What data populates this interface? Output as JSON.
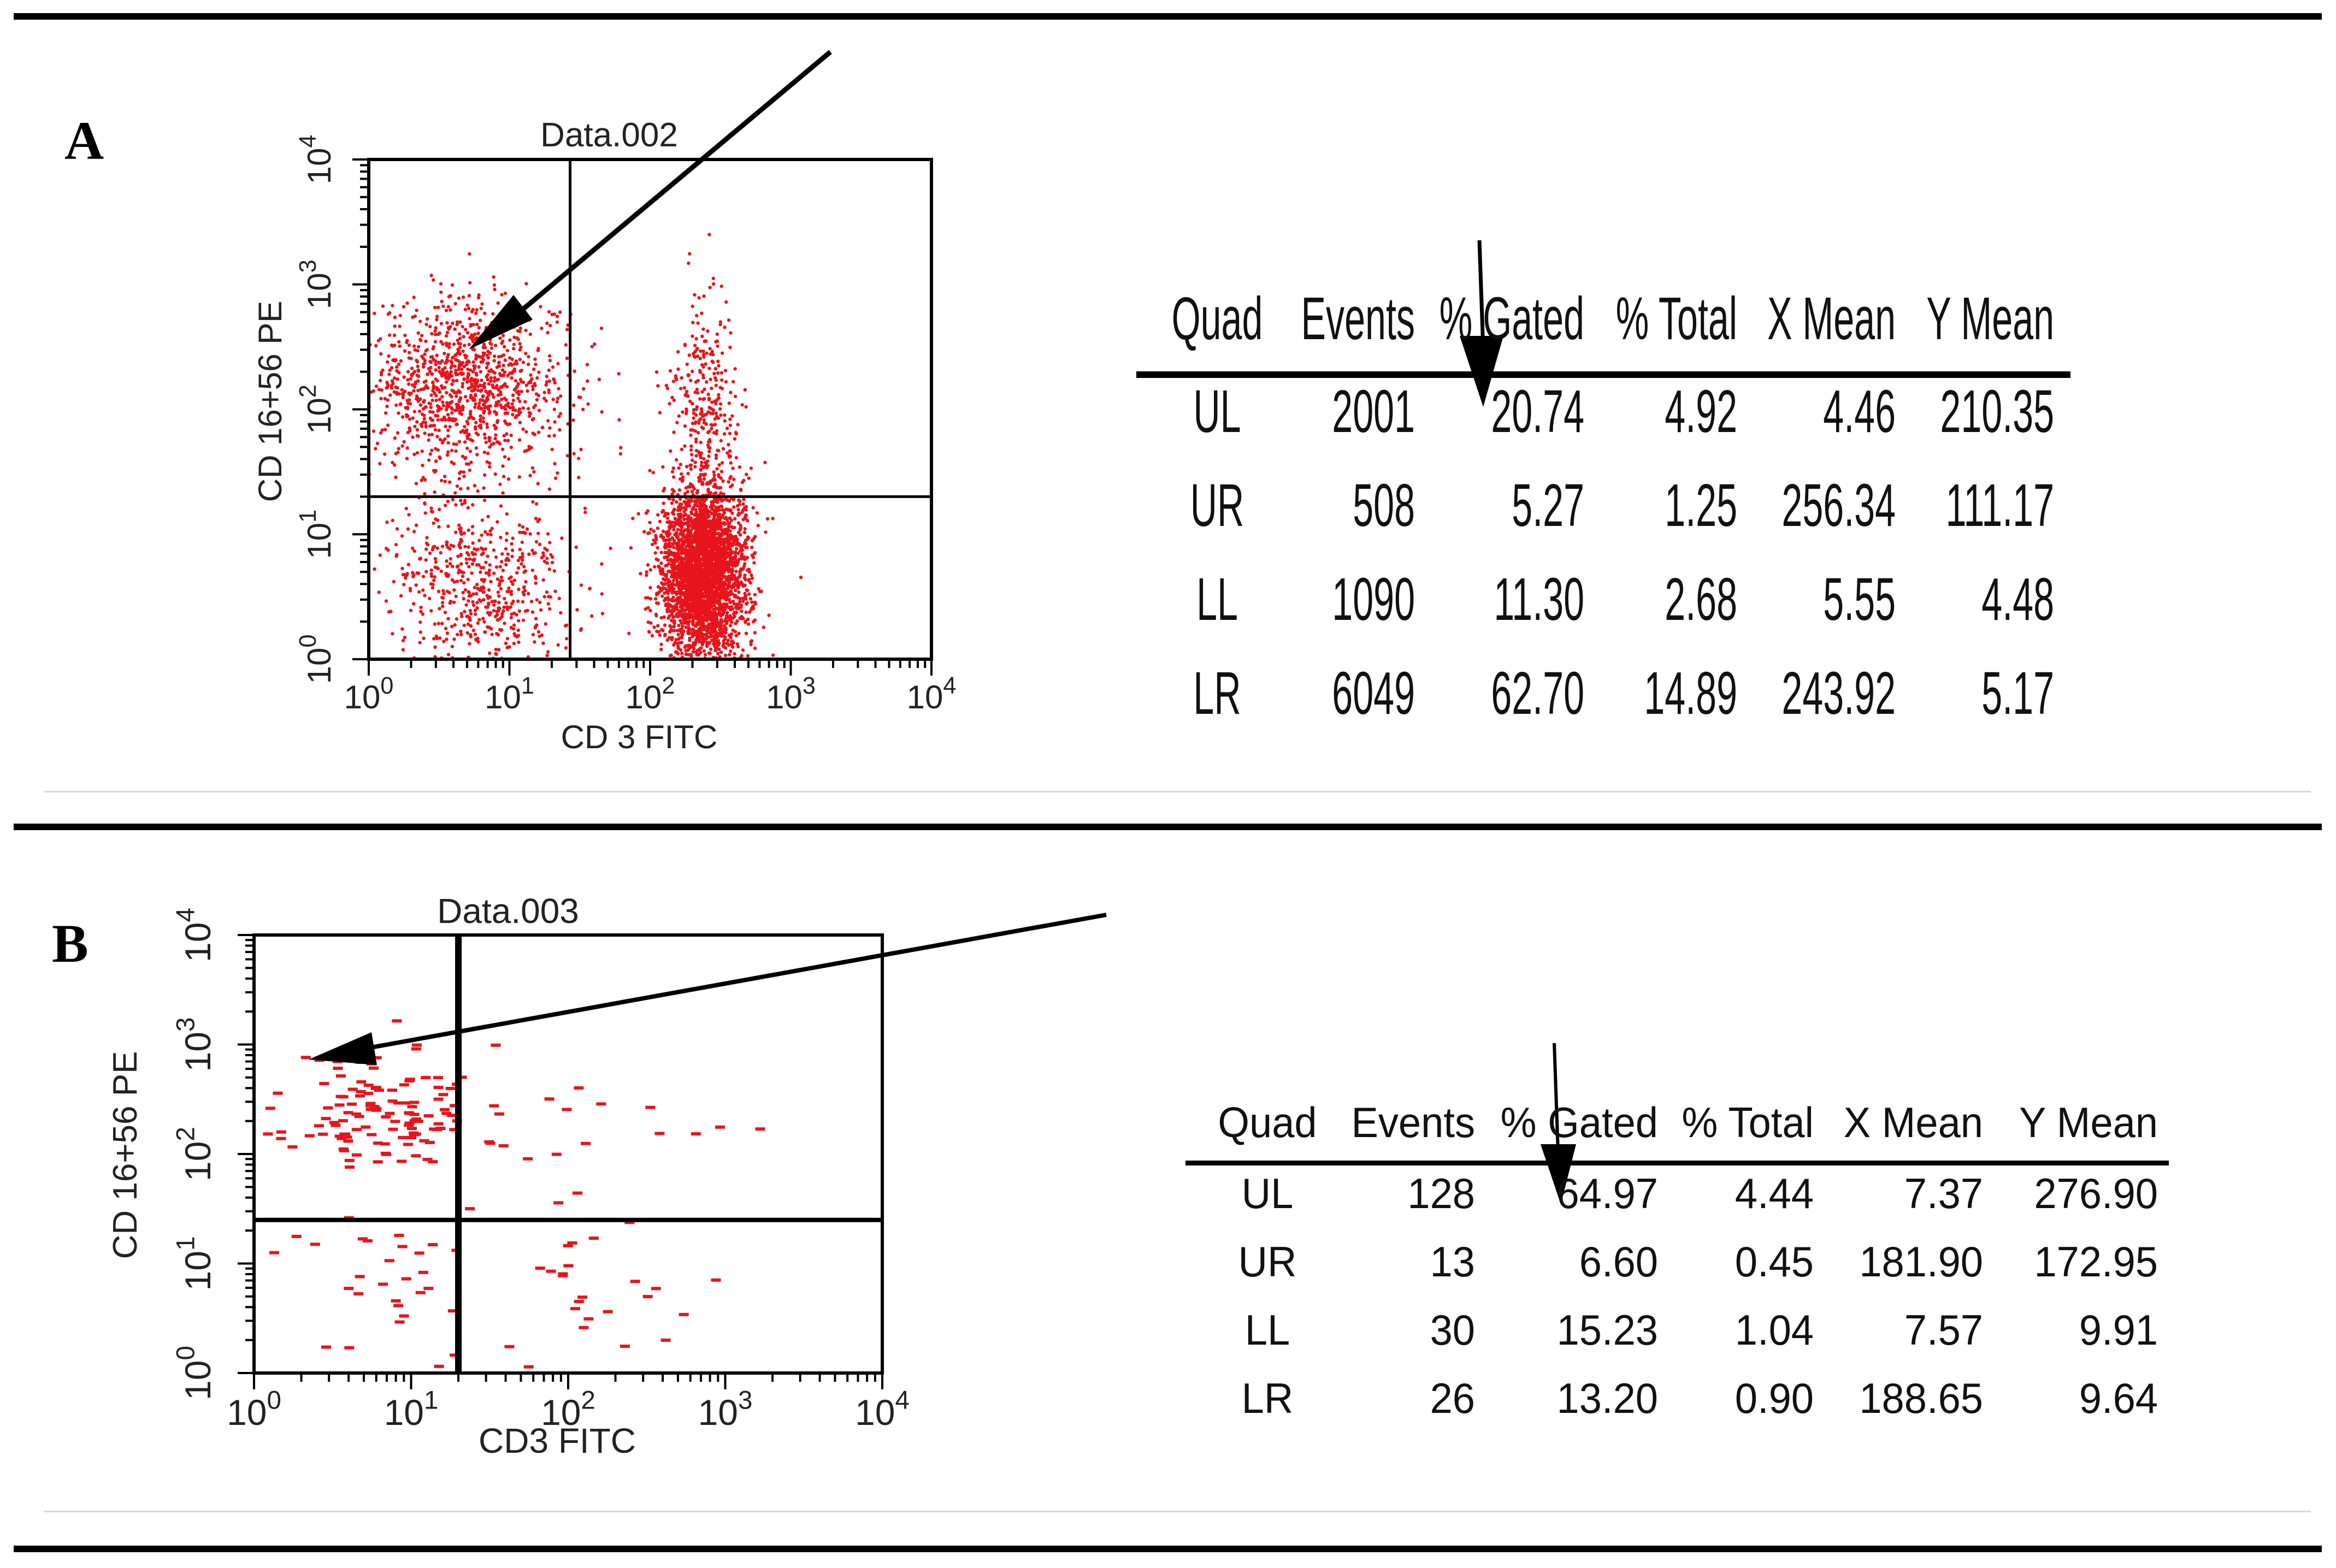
{
  "colors": {
    "dots": "#e8141c",
    "axis": "#000000",
    "text": "#222222"
  },
  "panels": [
    {
      "label": "A",
      "chart_data": {
        "type": "scatter",
        "title": "Data.002",
        "xlabel": "CD 3 FITC",
        "ylabel": "CD 16+56 PE",
        "xscale": "log",
        "yscale": "log",
        "xlim": [
          1,
          10000
        ],
        "ylim": [
          1,
          10000
        ],
        "xticks": [
          "10^0",
          "10^1",
          "10^2",
          "10^3",
          "10^4"
        ],
        "yticks": [
          "10^0",
          "10^1",
          "10^2",
          "10^3",
          "10^4"
        ],
        "quadrant_gate": {
          "x": 27,
          "y": 20
        },
        "clusters": [
          {
            "quad": "UL",
            "cx": 5,
            "cy": 150,
            "sx": 0.35,
            "sy": 0.35,
            "n": 2001
          },
          {
            "quad": "LL",
            "cx": 6,
            "cy": 4,
            "sx": 0.35,
            "sy": 0.35,
            "n": 1090
          },
          {
            "quad": "LR",
            "cx": 240,
            "cy": 5,
            "sx": 0.15,
            "sy": 0.35,
            "n": 6049
          },
          {
            "quad": "UR",
            "cx": 250,
            "cy": 110,
            "sx": 0.12,
            "sy": 0.4,
            "n": 508
          }
        ],
        "table": {
          "columns": [
            "Quad",
            "Events",
            "% Gated",
            "% Total",
            "X Mean",
            "Y Mean"
          ],
          "rows": [
            [
              "UL",
              "2001",
              "20.74",
              "4.92",
              "4.46",
              "210.35"
            ],
            [
              "UR",
              "508",
              "5.27",
              "1.25",
              "256.34",
              "111.17"
            ],
            [
              "LL",
              "1090",
              "11.30",
              "2.68",
              "5.55",
              "4.48"
            ],
            [
              "LR",
              "6049",
              "62.70",
              "14.89",
              "243.92",
              "5.17"
            ]
          ]
        }
      }
    },
    {
      "label": "B",
      "chart_data": {
        "type": "scatter",
        "title": "Data.003",
        "xlabel": "CD3 FITC",
        "ylabel": "CD 16+56 PE",
        "xscale": "log",
        "yscale": "log",
        "xlim": [
          1,
          10000
        ],
        "ylim": [
          1,
          10000
        ],
        "xticks": [
          "10^0",
          "10^1",
          "10^2",
          "10^3",
          "10^4"
        ],
        "yticks": [
          "10^0",
          "10^1",
          "10^2",
          "10^3",
          "10^4"
        ],
        "quadrant_gate": {
          "x": 20,
          "y": 25
        },
        "clusters": [
          {
            "quad": "UL",
            "cx": 7,
            "cy": 250,
            "sx": 0.3,
            "sy": 0.3,
            "n": 128
          },
          {
            "quad": "UR",
            "cx": 150,
            "cy": 120,
            "sx": 0.5,
            "sy": 0.4,
            "n": 13
          },
          {
            "quad": "LL",
            "cx": 7,
            "cy": 8,
            "sx": 0.4,
            "sy": 0.4,
            "n": 30
          },
          {
            "quad": "LR",
            "cx": 180,
            "cy": 8,
            "sx": 0.4,
            "sy": 0.4,
            "n": 26
          }
        ],
        "table": {
          "columns": [
            "Quad",
            "Events",
            "% Gated",
            "% Total",
            "X Mean",
            "Y Mean"
          ],
          "rows": [
            [
              "UL",
              "128",
              "64.97",
              "4.44",
              "7.37",
              "276.90"
            ],
            [
              "UR",
              "13",
              "6.60",
              "0.45",
              "181.90",
              "172.95"
            ],
            [
              "LL",
              "30",
              "15.23",
              "1.04",
              "7.57",
              "9.91"
            ],
            [
              "LR",
              "26",
              "13.20",
              "0.90",
              "188.65",
              "9.64"
            ]
          ]
        }
      }
    }
  ]
}
